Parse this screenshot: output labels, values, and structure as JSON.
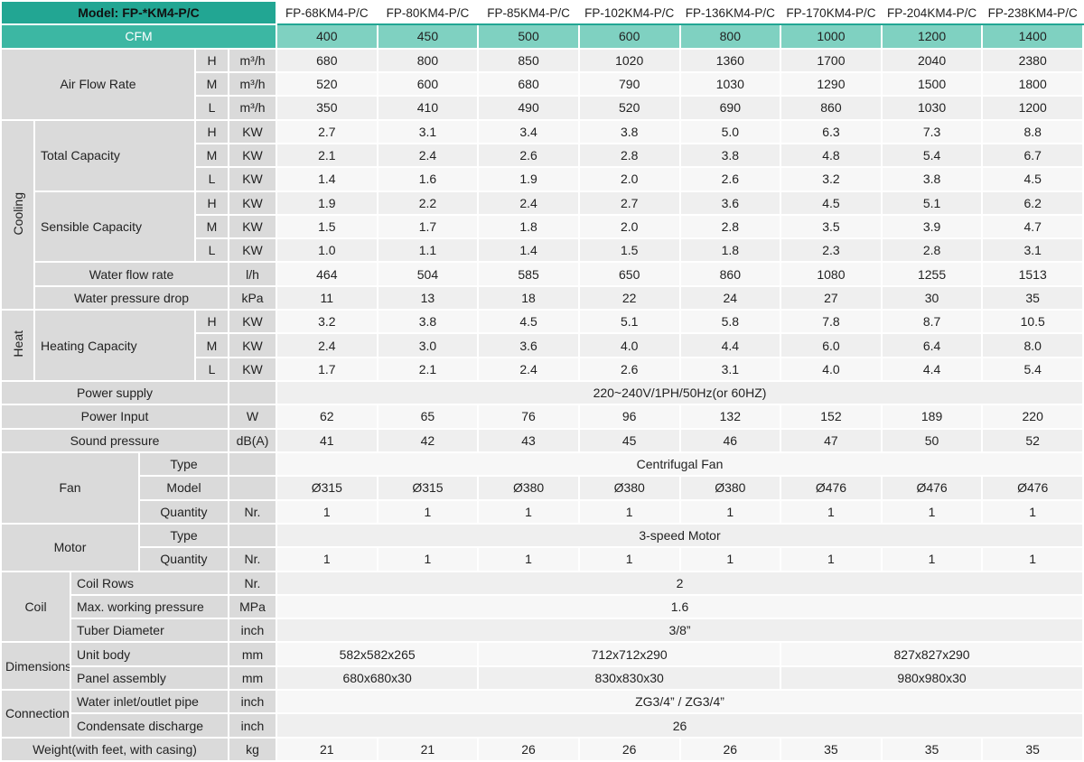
{
  "table": {
    "model_label": "Model: FP-*KM4-P/C",
    "models": [
      "FP-68KM4-P/C",
      "FP-80KM4-P/C",
      "FP-85KM4-P/C",
      "FP-102KM4-P/C",
      "FP-136KM4-P/C",
      "FP-170KM4-P/C",
      "FP-204KM4-P/C",
      "FP-238KM4-P/C"
    ],
    "cfm_label": "CFM",
    "cfm": [
      400,
      450,
      500,
      600,
      800,
      1000,
      1200,
      1400
    ],
    "air_flow": {
      "label": "Air Flow Rate",
      "rows": [
        {
          "speed": "H",
          "unit": "m³/h",
          "values": [
            680,
            800,
            850,
            1020,
            1360,
            1700,
            2040,
            2380
          ]
        },
        {
          "speed": "M",
          "unit": "m³/h",
          "values": [
            520,
            600,
            680,
            790,
            1030,
            1290,
            1500,
            1800
          ]
        },
        {
          "speed": "L",
          "unit": "m³/h",
          "values": [
            350,
            410,
            490,
            520,
            690,
            860,
            1030,
            1200
          ]
        }
      ]
    },
    "cooling": {
      "label": "Cooling",
      "total_capacity": {
        "label": "Total Capacity",
        "rows": [
          {
            "speed": "H",
            "unit": "KW",
            "values": [
              "2.7",
              "3.1",
              "3.4",
              "3.8",
              "5.0",
              "6.3",
              "7.3",
              "8.8"
            ]
          },
          {
            "speed": "M",
            "unit": "KW",
            "values": [
              "2.1",
              "2.4",
              "2.6",
              "2.8",
              "3.8",
              "4.8",
              "5.4",
              "6.7"
            ]
          },
          {
            "speed": "L",
            "unit": "KW",
            "values": [
              "1.4",
              "1.6",
              "1.9",
              "2.0",
              "2.6",
              "3.2",
              "3.8",
              "4.5"
            ]
          }
        ]
      },
      "sensible_capacity": {
        "label": "Sensible Capacity",
        "rows": [
          {
            "speed": "H",
            "unit": "KW",
            "values": [
              "1.9",
              "2.2",
              "2.4",
              "2.7",
              "3.6",
              "4.5",
              "5.1",
              "6.2"
            ]
          },
          {
            "speed": "M",
            "unit": "KW",
            "values": [
              "1.5",
              "1.7",
              "1.8",
              "2.0",
              "2.8",
              "3.5",
              "3.9",
              "4.7"
            ]
          },
          {
            "speed": "L",
            "unit": "KW",
            "values": [
              "1.0",
              "1.1",
              "1.4",
              "1.5",
              "1.8",
              "2.3",
              "2.8",
              "3.1"
            ]
          }
        ]
      },
      "water_flow": {
        "label": "Water flow rate",
        "unit": "l/h",
        "values": [
          464,
          504,
          585,
          650,
          860,
          1080,
          1255,
          1513
        ]
      },
      "water_pressure": {
        "label": "Water pressure drop",
        "unit": "kPa",
        "values": [
          11,
          13,
          18,
          22,
          24,
          27,
          30,
          35
        ]
      }
    },
    "heat": {
      "label": "Heat",
      "heating_capacity": {
        "label": "Heating Capacity",
        "rows": [
          {
            "speed": "H",
            "unit": "KW",
            "values": [
              "3.2",
              "3.8",
              "4.5",
              "5.1",
              "5.8",
              "7.8",
              "8.7",
              "10.5"
            ]
          },
          {
            "speed": "M",
            "unit": "KW",
            "values": [
              "2.4",
              "3.0",
              "3.6",
              "4.0",
              "4.4",
              "6.0",
              "6.4",
              "8.0"
            ]
          },
          {
            "speed": "L",
            "unit": "KW",
            "values": [
              "1.7",
              "2.1",
              "2.4",
              "2.6",
              "3.1",
              "4.0",
              "4.4",
              "5.4"
            ]
          }
        ]
      }
    },
    "power_supply": {
      "label": "Power supply",
      "value": "220~240V/1PH/50Hz(or 60HZ)"
    },
    "power_input": {
      "label": "Power Input",
      "unit": "W",
      "values": [
        62,
        65,
        76,
        96,
        132,
        152,
        189,
        220
      ]
    },
    "sound_pressure": {
      "label": "Sound pressure",
      "unit": "dB(A)",
      "values": [
        41,
        42,
        43,
        45,
        46,
        47,
        50,
        52
      ]
    },
    "fan": {
      "label": "Fan",
      "type": {
        "label": "Type",
        "value": "Centrifugal Fan"
      },
      "model": {
        "label": "Model",
        "values": [
          "Ø315",
          "Ø315",
          "Ø380",
          "Ø380",
          "Ø380",
          "Ø476",
          "Ø476",
          "Ø476"
        ]
      },
      "quantity": {
        "label": "Quantity",
        "unit": "Nr.",
        "values": [
          1,
          1,
          1,
          1,
          1,
          1,
          1,
          1
        ]
      }
    },
    "motor": {
      "label": "Motor",
      "type": {
        "label": "Type",
        "value": "3-speed Motor"
      },
      "quantity": {
        "label": "Quantity",
        "unit": "Nr.",
        "values": [
          1,
          1,
          1,
          1,
          1,
          1,
          1,
          1
        ]
      }
    },
    "coil": {
      "label": "Coil",
      "rows": [
        {
          "label": "Coil Rows",
          "unit": "Nr.",
          "value": "2"
        },
        {
          "label": "Max. working pressure",
          "unit": "MPa",
          "value": "1.6"
        },
        {
          "label": "Tuber Diameter",
          "unit": "inch",
          "value": "3/8”"
        }
      ]
    },
    "dimensions": {
      "label": "Dimensions",
      "rows": [
        {
          "label": "Unit body",
          "unit": "mm",
          "values": [
            "582x582x265",
            "712x712x290",
            "827x827x290"
          ]
        },
        {
          "label": "Panel assembly",
          "unit": "mm",
          "values": [
            "680x680x30",
            "830x830x30",
            "980x980x30"
          ]
        }
      ]
    },
    "connection": {
      "label": "Connection",
      "rows": [
        {
          "label": "Water inlet/outlet pipe",
          "unit": "inch",
          "value": "ZG3/4” / ZG3/4”"
        },
        {
          "label": "Condensate discharge",
          "unit": "inch",
          "value": "26"
        }
      ]
    },
    "weight": {
      "label": "Weight(with feet, with casing)",
      "unit": "kg",
      "values": [
        21,
        21,
        26,
        26,
        26,
        35,
        35,
        35
      ]
    }
  }
}
